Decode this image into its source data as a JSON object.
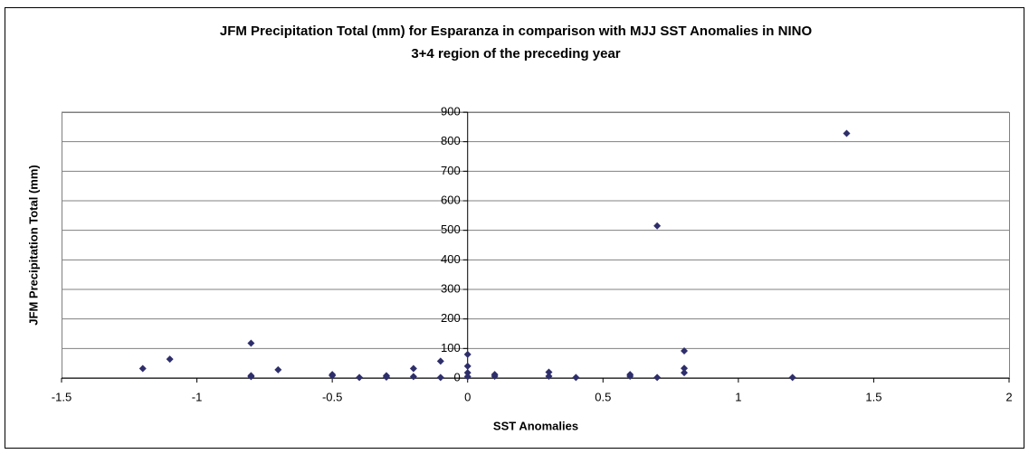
{
  "chart_data": {
    "type": "scatter",
    "title": [
      "JFM Precipitation Total (mm) for Esparanza in comparison with MJJ SST Anomalies in NINO",
      "3+4 region of the preceding year"
    ],
    "x_label": "SST Anomalies",
    "y_label": "JFM Precipitation Total (mm)",
    "x": [
      -1.2,
      -1.1,
      -0.8,
      -0.8,
      -0.8,
      -0.7,
      -0.5,
      -0.5,
      -0.4,
      -0.3,
      -0.3,
      -0.2,
      -0.2,
      -0.1,
      -0.1,
      0,
      0,
      0,
      0,
      0.1,
      0.1,
      0.3,
      0.3,
      0.4,
      0.6,
      0.6,
      0.7,
      0.7,
      0.8,
      0.8,
      0.8,
      1.2,
      1.4
    ],
    "values": [
      32,
      64,
      118,
      8,
      5,
      28,
      12,
      8,
      2,
      8,
      3,
      32,
      5,
      57,
      2,
      80,
      40,
      18,
      5,
      12,
      6,
      20,
      6,
      2,
      12,
      6,
      515,
      2,
      92,
      33,
      18,
      2,
      828
    ],
    "color": "#2e2e6b",
    "xlim": [
      -1.5,
      2
    ],
    "xticks": [
      -1.5,
      -1,
      -0.5,
      0,
      0.5,
      1,
      1.5,
      2
    ],
    "ylim": [
      0,
      900
    ],
    "yticks": [
      0,
      100,
      200,
      300,
      400,
      500,
      600,
      700,
      800,
      900
    ],
    "grid": true
  }
}
